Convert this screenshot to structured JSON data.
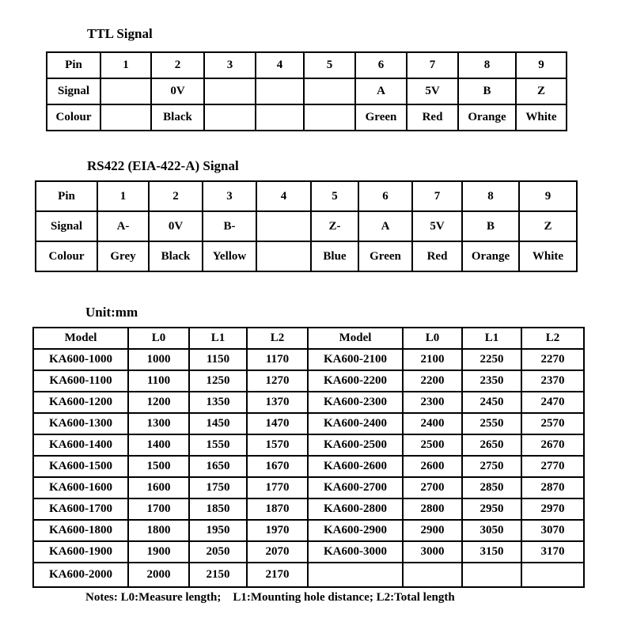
{
  "ttl_table": {
    "title": "TTL Signal",
    "rows": [
      [
        "Pin",
        "1",
        "2",
        "3",
        "4",
        "5",
        "6",
        "7",
        "8",
        "9"
      ],
      [
        "Signal",
        "",
        "0V",
        "",
        "",
        "",
        "A",
        "5V",
        "B",
        "Z"
      ],
      [
        "Colour",
        "",
        "Black",
        "",
        "",
        "",
        "Green",
        "Red",
        "Orange",
        "White"
      ]
    ]
  },
  "rs422_table": {
    "title": "RS422 (EIA-422-A) Signal",
    "rows": [
      [
        "Pin",
        "1",
        "2",
        "3",
        "4",
        "5",
        "6",
        "7",
        "8",
        "9"
      ],
      [
        "Signal",
        "A-",
        "0V",
        "B-",
        "",
        "Z-",
        "A",
        "5V",
        "B",
        "Z"
      ],
      [
        "Colour",
        "Grey",
        "Black",
        "Yellow",
        "",
        "Blue",
        "Green",
        "Red",
        "Orange",
        "White"
      ]
    ]
  },
  "unit_table": {
    "title": "Unit:mm",
    "columns": [
      "Model",
      "L0",
      "L1",
      "L2",
      "Model",
      "L0",
      "L1",
      "L2"
    ],
    "rows": [
      [
        "KA600-1000",
        "1000",
        "1150",
        "1170",
        "KA600-2100",
        "2100",
        "2250",
        "2270"
      ],
      [
        "KA600-1100",
        "1100",
        "1250",
        "1270",
        "KA600-2200",
        "2200",
        "2350",
        "2370"
      ],
      [
        "KA600-1200",
        "1200",
        "1350",
        "1370",
        "KA600-2300",
        "2300",
        "2450",
        "2470"
      ],
      [
        "KA600-1300",
        "1300",
        "1450",
        "1470",
        "KA600-2400",
        "2400",
        "2550",
        "2570"
      ],
      [
        "KA600-1400",
        "1400",
        "1550",
        "1570",
        "KA600-2500",
        "2500",
        "2650",
        "2670"
      ],
      [
        "KA600-1500",
        "1500",
        "1650",
        "1670",
        "KA600-2600",
        "2600",
        "2750",
        "2770"
      ],
      [
        "KA600-1600",
        "1600",
        "1750",
        "1770",
        "KA600-2700",
        "2700",
        "2850",
        "2870"
      ],
      [
        "KA600-1700",
        "1700",
        "1850",
        "1870",
        "KA600-2800",
        "2800",
        "2950",
        "2970"
      ],
      [
        "KA600-1800",
        "1800",
        "1950",
        "1970",
        "KA600-2900",
        "2900",
        "3050",
        "3070"
      ],
      [
        "KA600-1900",
        "1900",
        "2050",
        "2070",
        "KA600-3000",
        "3000",
        "3150",
        "3170"
      ],
      [
        "KA600-2000",
        "2000",
        "2150",
        "2170",
        "",
        "",
        "",
        ""
      ]
    ]
  },
  "notes": "Notes: L0:Measure length;    L1:Mounting hole distance; L2:Total length",
  "colors": {
    "text": "#000000",
    "background": "#ffffff",
    "border": "#000000"
  }
}
